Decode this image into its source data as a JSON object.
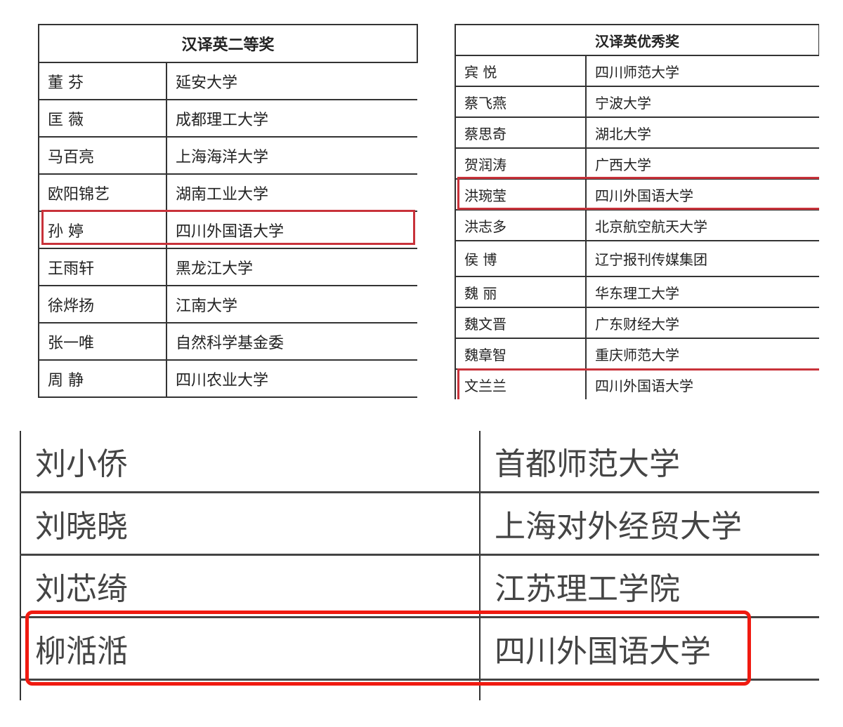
{
  "table_second_prize": {
    "title": "汉译英二等奖",
    "rows": [
      {
        "name": "董 芬",
        "org": "延安大学"
      },
      {
        "name": "匡 薇",
        "org": "成都理工大学"
      },
      {
        "name": "马百亮",
        "org": "上海海洋大学"
      },
      {
        "name": "欧阳锦艺",
        "org": "湖南工业大学"
      },
      {
        "name": "孙 婷",
        "org": "四川外国语大学",
        "highlighted": true
      },
      {
        "name": "王雨轩",
        "org": "黑龙江大学"
      },
      {
        "name": "徐烨扬",
        "org": "江南大学"
      },
      {
        "name": "张一唯",
        "org": "自然科学基金委"
      },
      {
        "name": "周 静",
        "org": "四川农业大学"
      }
    ]
  },
  "table_excellence_prize": {
    "title": "汉译英优秀奖",
    "rows": [
      {
        "name": "宾 悦",
        "org": "四川师范大学"
      },
      {
        "name": "蔡飞燕",
        "org": "宁波大学"
      },
      {
        "name": "蔡思奇",
        "org": "湖北大学"
      },
      {
        "name": "贺润涛",
        "org": "广西大学"
      },
      {
        "name": "洪琬莹",
        "org": "四川外国语大学",
        "highlighted": true
      },
      {
        "name": "洪志多",
        "org": "北京航空航天大学"
      },
      {
        "name": "侯 博",
        "org": "辽宁报刊传媒集团"
      },
      {
        "name": "魏 丽",
        "org": "华东理工大学"
      },
      {
        "name": "魏文晋",
        "org": "广东财经大学"
      },
      {
        "name": "魏章智",
        "org": "重庆师范大学"
      },
      {
        "name": "文兰兰",
        "org": "四川外国语大学",
        "highlighted": true
      }
    ]
  },
  "table_bottom": {
    "rows": [
      {
        "name": "刘小侨",
        "org": "首都师范大学"
      },
      {
        "name": "刘晓晓",
        "org": "上海对外经贸大学"
      },
      {
        "name": "刘芯绮",
        "org": "江苏理工学院"
      },
      {
        "name": "柳湉湉",
        "org": "四川外国语大学",
        "highlighted": true
      }
    ]
  },
  "colors": {
    "highlight": "#c8323a",
    "highlight_bottom": "#f01a10"
  }
}
